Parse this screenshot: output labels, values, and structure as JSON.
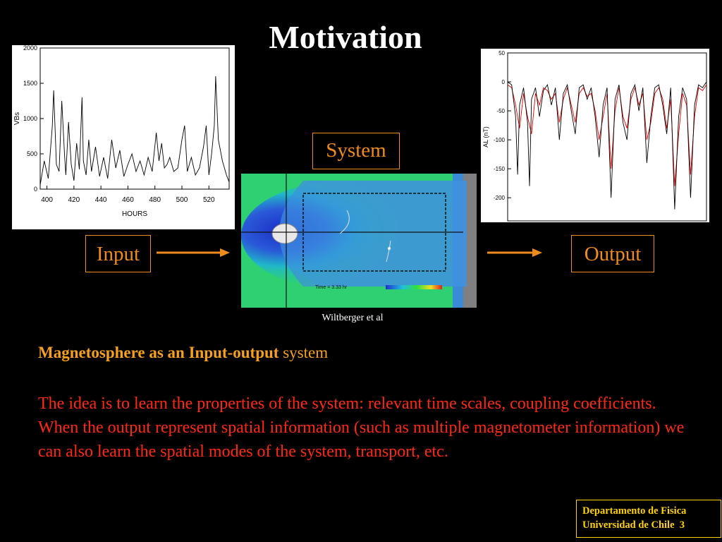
{
  "slide": {
    "title": "Motivation",
    "system_label": "System",
    "input_label": "Input",
    "output_label": "Output",
    "credit": "Wiltberger et al",
    "heading_bold": "Magnetosphere as an Input-output",
    "heading_rest": " system",
    "body": "The idea is to learn the properties of the system: relevant time scales, coupling coefficients. When the output represent spatial information (such as multiple magnetometer information) we can also learn the spatial modes of the system, transport, etc.",
    "footer_line1": "Departamento de Fisica",
    "footer_line2": "Universidad de Chile",
    "page_number": "3",
    "colors": {
      "title": "#ffffff",
      "box": "#f08c1e",
      "heading": "#f5a020",
      "body": "#ff2a14",
      "footer": "#ffd200"
    }
  },
  "simulation": {
    "time_label": "Time = 3.33  hr"
  },
  "chart_data": [
    {
      "type": "line",
      "title": "",
      "xlabel": "HOURS",
      "ylabel": "VBs",
      "xlim": [
        395,
        535
      ],
      "ylim": [
        0,
        2000
      ],
      "x_ticks": [
        400,
        420,
        440,
        460,
        480,
        500,
        520
      ],
      "y_ticks": [
        0,
        500,
        1000,
        1500,
        2000
      ],
      "grid": false,
      "series": [
        {
          "color": "#000000",
          "x": [
            395,
            398,
            401,
            404,
            405,
            407,
            409,
            411,
            413,
            414,
            416,
            418,
            420,
            422,
            424,
            426,
            427,
            429,
            431,
            433,
            436,
            439,
            442,
            445,
            448,
            451,
            454,
            457,
            460,
            463,
            466,
            469,
            472,
            475,
            478,
            481,
            483,
            485,
            487,
            489,
            491,
            494,
            497,
            500,
            502,
            504,
            507,
            510,
            513,
            516,
            518,
            520,
            522,
            524,
            525,
            527,
            530,
            533,
            535
          ],
          "values": [
            60,
            400,
            150,
            900,
            1400,
            350,
            250,
            1250,
            500,
            200,
            950,
            350,
            120,
            650,
            280,
            1300,
            400,
            200,
            700,
            250,
            600,
            180,
            450,
            150,
            700,
            300,
            550,
            180,
            350,
            500,
            250,
            400,
            200,
            450,
            250,
            800,
            400,
            650,
            300,
            350,
            450,
            250,
            300,
            700,
            900,
            250,
            450,
            200,
            300,
            600,
            900,
            200,
            500,
            900,
            1600,
            700,
            400,
            200,
            100
          ]
        }
      ]
    },
    {
      "type": "line",
      "title": "",
      "xlabel": "",
      "ylabel": "AL (nT)",
      "ylim": [
        -240,
        50
      ],
      "y_ticks": [
        50,
        0,
        -50,
        -100,
        -150,
        -200
      ],
      "grid": false,
      "series": [
        {
          "color": "#000000",
          "x": [
            0,
            2,
            4,
            5,
            6,
            8,
            10,
            11,
            12,
            14,
            16,
            18,
            20,
            22,
            24,
            26,
            28,
            30,
            32,
            34,
            36,
            38,
            40,
            42,
            44,
            46,
            48,
            50,
            52,
            54,
            56,
            58,
            60,
            62,
            64,
            66,
            68,
            70,
            72,
            74,
            76,
            78,
            80,
            82,
            84,
            86,
            88,
            90,
            92,
            94,
            96,
            98,
            100
          ],
          "values": [
            0,
            -5,
            -60,
            -160,
            -40,
            -10,
            -70,
            -180,
            -30,
            -10,
            -60,
            -15,
            -5,
            -40,
            -10,
            -100,
            -20,
            -5,
            -50,
            -90,
            -10,
            -5,
            -30,
            -10,
            -60,
            -130,
            -40,
            -10,
            -200,
            -30,
            -5,
            -70,
            -100,
            -20,
            -5,
            -50,
            -10,
            -140,
            -60,
            -10,
            -5,
            -40,
            -90,
            -10,
            -220,
            -60,
            -10,
            -30,
            -200,
            -40,
            -5,
            -10,
            0
          ]
        },
        {
          "color": "#e00000",
          "x": [
            0,
            2,
            4,
            6,
            8,
            10,
            12,
            14,
            16,
            18,
            20,
            22,
            24,
            26,
            28,
            30,
            32,
            34,
            36,
            38,
            40,
            42,
            44,
            46,
            48,
            50,
            52,
            54,
            56,
            58,
            60,
            62,
            64,
            66,
            68,
            70,
            72,
            74,
            76,
            78,
            80,
            82,
            84,
            86,
            88,
            90,
            92,
            94,
            96,
            98,
            100
          ],
          "values": [
            -5,
            -10,
            -40,
            -80,
            -20,
            -60,
            -90,
            -20,
            -40,
            -10,
            -15,
            -30,
            -20,
            -70,
            -30,
            -10,
            -40,
            -70,
            -20,
            -10,
            -25,
            -20,
            -50,
            -100,
            -60,
            -20,
            -150,
            -50,
            -10,
            -60,
            -80,
            -30,
            -10,
            -40,
            -20,
            -100,
            -70,
            -20,
            -10,
            -30,
            -80,
            -30,
            -180,
            -90,
            -20,
            -40,
            -160,
            -60,
            -10,
            -15,
            -5
          ]
        }
      ]
    }
  ]
}
